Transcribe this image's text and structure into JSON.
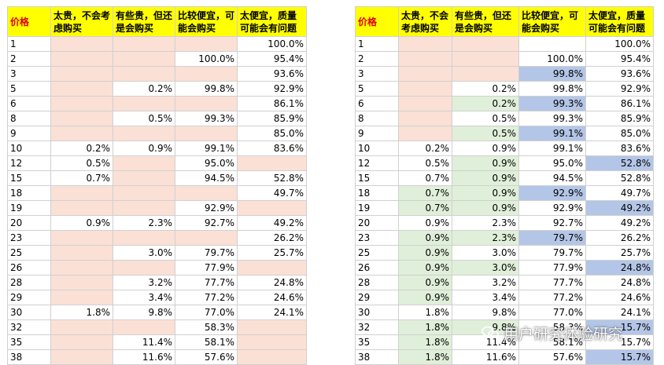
{
  "headers": [
    "价格",
    "太贵，不会考虑购买",
    "有些贵，但还是会购买",
    "比较便宜，可能会购买",
    "太便宜，质量可能会有问题"
  ],
  "watermark": "用户研究体验研究",
  "left_table": {
    "rows": [
      [
        "1",
        "",
        "",
        "",
        "100.0%"
      ],
      [
        "2",
        "",
        "",
        "100.0%",
        "95.4%"
      ],
      [
        "3",
        "",
        "",
        "",
        "93.6%"
      ],
      [
        "5",
        "",
        "0.2%",
        "99.8%",
        "92.9%"
      ],
      [
        "6",
        "",
        "",
        "",
        "86.1%"
      ],
      [
        "8",
        "",
        "0.5%",
        "99.3%",
        "85.9%"
      ],
      [
        "9",
        "",
        "",
        "",
        "85.0%"
      ],
      [
        "10",
        "0.2%",
        "0.9%",
        "99.1%",
        "83.6%"
      ],
      [
        "12",
        "0.5%",
        "",
        "95.0%",
        ""
      ],
      [
        "15",
        "0.7%",
        "",
        "94.5%",
        "52.8%"
      ],
      [
        "18",
        "",
        "",
        "",
        "49.7%"
      ],
      [
        "19",
        "",
        "",
        "92.9%",
        ""
      ],
      [
        "20",
        "0.9%",
        "2.3%",
        "92.7%",
        "49.2%"
      ],
      [
        "23",
        "",
        "",
        "",
        "26.2%"
      ],
      [
        "25",
        "",
        "3.0%",
        "79.7%",
        "25.7%"
      ],
      [
        "26",
        "",
        "",
        "77.9%",
        ""
      ],
      [
        "28",
        "",
        "3.2%",
        "77.7%",
        "24.8%"
      ],
      [
        "29",
        "",
        "3.4%",
        "77.2%",
        "24.6%"
      ],
      [
        "30",
        "1.8%",
        "9.8%",
        "77.0%",
        "24.1%"
      ],
      [
        "32",
        "",
        "",
        "58.3%",
        ""
      ],
      [
        "35",
        "",
        "11.4%",
        "58.1%",
        ""
      ],
      [
        "38",
        "",
        "11.6%",
        "57.6%",
        ""
      ]
    ],
    "shading": [
      [
        "",
        "pink",
        "pink",
        "pink",
        ""
      ],
      [
        "",
        "pink",
        "pink",
        "",
        ""
      ],
      [
        "",
        "pink",
        "pink",
        "pink",
        ""
      ],
      [
        "",
        "pink",
        "",
        "",
        ""
      ],
      [
        "",
        "pink",
        "pink",
        "pink",
        ""
      ],
      [
        "",
        "pink",
        "",
        "",
        ""
      ],
      [
        "",
        "pink",
        "pink",
        "pink",
        ""
      ],
      [
        "",
        "",
        "",
        "",
        ""
      ],
      [
        "",
        "",
        "pink",
        "",
        "pink"
      ],
      [
        "",
        "",
        "pink",
        "",
        ""
      ],
      [
        "",
        "pink",
        "pink",
        "pink",
        ""
      ],
      [
        "",
        "pink",
        "pink",
        "",
        "pink"
      ],
      [
        "",
        "",
        "",
        "",
        ""
      ],
      [
        "",
        "pink",
        "pink",
        "pink",
        ""
      ],
      [
        "",
        "pink",
        "",
        "",
        ""
      ],
      [
        "",
        "pink",
        "pink",
        "",
        "pink"
      ],
      [
        "",
        "pink",
        "",
        "",
        ""
      ],
      [
        "",
        "pink",
        "",
        "",
        ""
      ],
      [
        "",
        "",
        "",
        "",
        ""
      ],
      [
        "",
        "pink",
        "pink",
        "",
        "pink"
      ],
      [
        "",
        "pink",
        "",
        "",
        "pink"
      ],
      [
        "",
        "pink",
        "",
        "",
        "pink"
      ]
    ]
  },
  "right_table": {
    "rows": [
      [
        "1",
        "",
        "",
        "",
        "100.0%"
      ],
      [
        "2",
        "",
        "",
        "100.0%",
        "95.4%"
      ],
      [
        "3",
        "",
        "",
        "99.8%",
        "93.6%"
      ],
      [
        "5",
        "",
        "0.2%",
        "99.8%",
        "92.9%"
      ],
      [
        "6",
        "",
        "0.2%",
        "99.3%",
        "86.1%"
      ],
      [
        "8",
        "",
        "0.5%",
        "99.3%",
        "85.9%"
      ],
      [
        "9",
        "",
        "0.5%",
        "99.1%",
        "85.0%"
      ],
      [
        "10",
        "0.2%",
        "0.9%",
        "99.1%",
        "83.6%"
      ],
      [
        "12",
        "0.5%",
        "0.9%",
        "95.0%",
        "52.8%"
      ],
      [
        "15",
        "0.7%",
        "0.9%",
        "94.5%",
        "52.8%"
      ],
      [
        "18",
        "0.7%",
        "0.9%",
        "92.9%",
        "49.7%"
      ],
      [
        "19",
        "0.7%",
        "0.9%",
        "92.9%",
        "49.2%"
      ],
      [
        "20",
        "0.9%",
        "2.3%",
        "92.7%",
        "49.2%"
      ],
      [
        "23",
        "0.9%",
        "2.3%",
        "79.7%",
        "26.2%"
      ],
      [
        "25",
        "0.9%",
        "3.0%",
        "79.7%",
        "25.7%"
      ],
      [
        "26",
        "0.9%",
        "3.0%",
        "77.9%",
        "24.8%"
      ],
      [
        "28",
        "0.9%",
        "3.2%",
        "77.7%",
        "24.8%"
      ],
      [
        "29",
        "0.9%",
        "3.4%",
        "77.2%",
        "24.6%"
      ],
      [
        "30",
        "1.8%",
        "9.8%",
        "77.0%",
        "24.1%"
      ],
      [
        "32",
        "1.8%",
        "9.8%",
        "58.3%",
        "15.7%"
      ],
      [
        "35",
        "1.8%",
        "11.4%",
        "58.1%",
        "15.7%"
      ],
      [
        "38",
        "1.8%",
        "11.6%",
        "57.6%",
        "15.7%"
      ]
    ],
    "shading": [
      [
        "",
        "pink",
        "pink",
        "",
        ""
      ],
      [
        "",
        "pink",
        "pink",
        "",
        ""
      ],
      [
        "",
        "pink",
        "pink",
        "blue",
        ""
      ],
      [
        "",
        "pink",
        "",
        "",
        ""
      ],
      [
        "",
        "pink",
        "green",
        "blue",
        ""
      ],
      [
        "",
        "pink",
        "",
        "",
        ""
      ],
      [
        "",
        "pink",
        "green",
        "blue",
        ""
      ],
      [
        "",
        "",
        "",
        "",
        ""
      ],
      [
        "",
        "",
        "green",
        "",
        "blue"
      ],
      [
        "",
        "",
        "green",
        "",
        ""
      ],
      [
        "",
        "green",
        "green",
        "blue",
        ""
      ],
      [
        "",
        "green",
        "green",
        "",
        "blue"
      ],
      [
        "",
        "",
        "",
        "",
        ""
      ],
      [
        "",
        "green",
        "green",
        "blue",
        ""
      ],
      [
        "",
        "green",
        "",
        "",
        ""
      ],
      [
        "",
        "green",
        "green",
        "",
        "blue"
      ],
      [
        "",
        "green",
        "",
        "",
        ""
      ],
      [
        "",
        "green",
        "",
        "",
        ""
      ],
      [
        "",
        "",
        "",
        "",
        ""
      ],
      [
        "",
        "green",
        "green",
        "",
        "blue"
      ],
      [
        "",
        "green",
        "",
        "",
        ""
      ],
      [
        "",
        "green",
        "",
        "",
        "blue"
      ]
    ]
  }
}
